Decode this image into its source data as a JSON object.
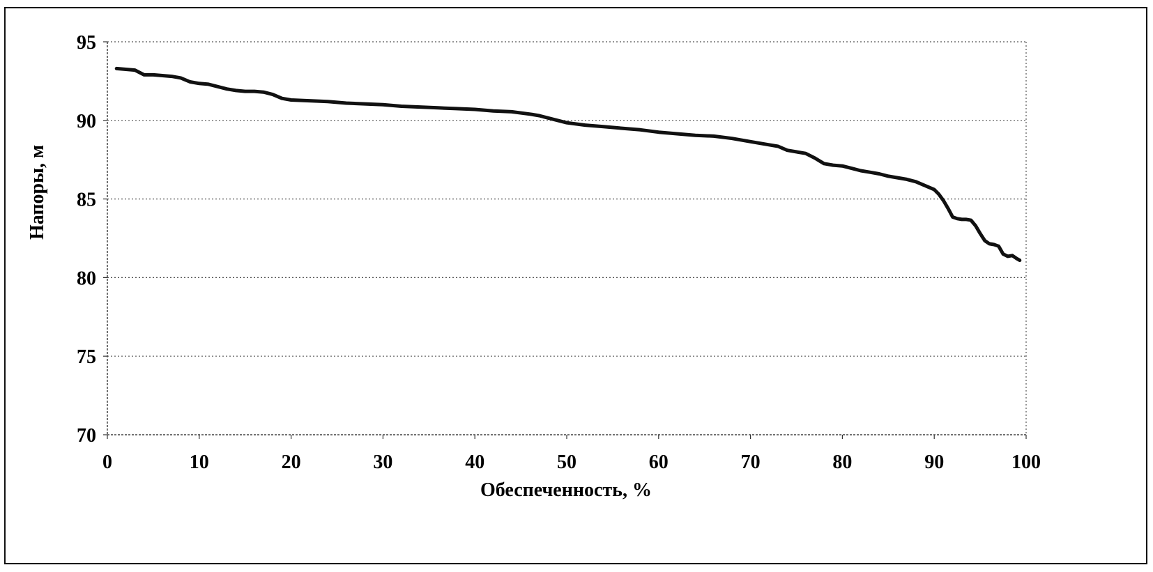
{
  "chart_data": {
    "type": "line",
    "title": "",
    "xlabel": "Обеспеченность, %",
    "ylabel": "Напоры, м",
    "xlim": [
      0,
      100
    ],
    "ylim": [
      70,
      95
    ],
    "xticks": [
      "0",
      "10",
      "20",
      "30",
      "40",
      "50",
      "60",
      "70",
      "80",
      "90",
      "100"
    ],
    "yticks": [
      "70",
      "75",
      "80",
      "85",
      "90",
      "95"
    ],
    "grid": true,
    "grid_style": "dotted",
    "legend": "none",
    "line_color": "#111111",
    "series": [
      {
        "x": [
          1,
          2,
          3,
          4,
          5,
          6,
          7,
          8,
          9,
          10,
          11,
          12,
          13,
          14,
          15,
          16,
          17,
          18,
          19,
          20,
          22,
          24,
          26,
          28,
          30,
          32,
          34,
          36,
          38,
          40,
          42,
          44,
          46,
          47,
          48,
          49,
          50,
          52,
          54,
          56,
          58,
          60,
          62,
          64,
          66,
          68,
          70,
          72,
          73,
          74,
          76,
          77,
          78,
          79,
          80,
          81,
          82,
          83,
          84,
          85,
          86,
          87,
          88,
          89,
          90,
          90.5,
          91,
          91.5,
          92,
          92.5,
          93,
          93.5,
          94,
          94.5,
          95,
          95.5,
          96,
          96.5,
          97,
          97.5,
          98,
          98.5,
          99,
          99.3
        ],
        "y": [
          93.3,
          93.25,
          93.2,
          92.9,
          92.9,
          92.85,
          92.8,
          92.7,
          92.45,
          92.35,
          92.3,
          92.15,
          92.0,
          91.9,
          91.85,
          91.85,
          91.8,
          91.65,
          91.4,
          91.3,
          91.25,
          91.2,
          91.1,
          91.05,
          91.0,
          90.9,
          90.85,
          90.8,
          90.75,
          90.7,
          90.6,
          90.55,
          90.4,
          90.3,
          90.15,
          90.0,
          89.85,
          89.7,
          89.6,
          89.5,
          89.4,
          89.25,
          89.15,
          89.05,
          89.0,
          88.85,
          88.65,
          88.45,
          88.35,
          88.1,
          87.9,
          87.6,
          87.25,
          87.15,
          87.1,
          86.95,
          86.8,
          86.7,
          86.6,
          86.45,
          86.35,
          86.25,
          86.1,
          85.85,
          85.6,
          85.3,
          84.9,
          84.4,
          83.85,
          83.75,
          83.7,
          83.7,
          83.65,
          83.3,
          82.8,
          82.35,
          82.15,
          82.1,
          82.0,
          81.5,
          81.35,
          81.4,
          81.2,
          81.1
        ]
      }
    ]
  }
}
